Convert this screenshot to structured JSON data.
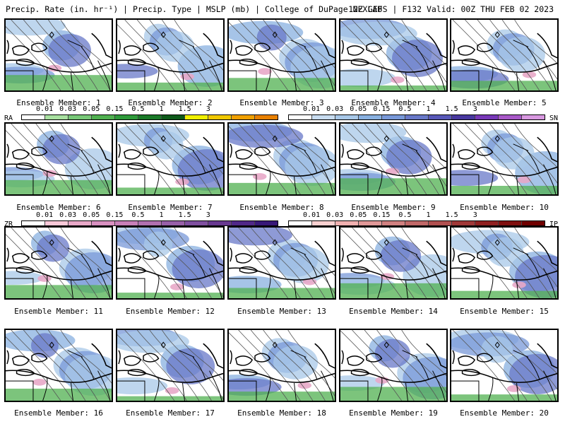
{
  "header": {
    "left": "Precip. Rate (in. hr⁻¹) | Precip. Type | MSLP (mb) | College of DuPage NEXLAB",
    "right": "12Z GEFS | F132 Valid: 00Z THU FEB 02 2023"
  },
  "members": [
    {
      "label": "Ensemble Member: 1"
    },
    {
      "label": "Ensemble Member: 2"
    },
    {
      "label": "Ensemble Member: 3"
    },
    {
      "label": "Ensemble Member: 4"
    },
    {
      "label": "Ensemble Member: 5"
    },
    {
      "label": "Ensemble Member: 6"
    },
    {
      "label": "Ensemble Member: 7"
    },
    {
      "label": "Ensemble Member: 8"
    },
    {
      "label": "Ensemble Member: 9"
    },
    {
      "label": "Ensemble Member: 10"
    },
    {
      "label": "Ensemble Member: 11"
    },
    {
      "label": "Ensemble Member: 12"
    },
    {
      "label": "Ensemble Member: 13"
    },
    {
      "label": "Ensemble Member: 14"
    },
    {
      "label": "Ensemble Member: 15"
    },
    {
      "label": "Ensemble Member: 16"
    },
    {
      "label": "Ensemble Member: 17"
    },
    {
      "label": "Ensemble Member: 18"
    },
    {
      "label": "Ensemble Member: 19"
    },
    {
      "label": "Ensemble Member: 20"
    }
  ],
  "legends": {
    "rain": {
      "code": "RA",
      "ticks": [
        "0.01",
        "0.03",
        "0.05",
        "0.15",
        "0.5",
        "1",
        "1.5",
        "3"
      ],
      "colors": [
        "#ffffff",
        "#a8e0a0",
        "#78c878",
        "#50b050",
        "#2e9a3a",
        "#1a7a28",
        "#0e5a1a",
        "#f0f000",
        "#f0c800",
        "#f0a000",
        "#e88000"
      ]
    },
    "snow": {
      "code": "SN",
      "ticks": [
        "0.01",
        "0.03",
        "0.05",
        "0.15",
        "0.5",
        "1",
        "1.5",
        "3"
      ],
      "colors": [
        "#ffffff",
        "#c8dcf0",
        "#a8c8e8",
        "#88b0e0",
        "#7898d8",
        "#6878c8",
        "#5858b8",
        "#4838a0",
        "#7838b8",
        "#a858c8",
        "#d898e0"
      ]
    },
    "freezing": {
      "code": "ZR",
      "ticks": [
        "0.01",
        "0.03",
        "0.05",
        "0.15",
        "0.5",
        "1",
        "1.5",
        "3"
      ],
      "colors": [
        "#ffffff",
        "#f8c8d8",
        "#e8a8c8",
        "#d890c0",
        "#c880b8",
        "#b070b0",
        "#9860a8",
        "#8050a0",
        "#683890",
        "#502888",
        "#381878"
      ]
    },
    "sleet": {
      "code": "IP",
      "ticks": [
        "0.01",
        "0.03",
        "0.05",
        "0.15",
        "0.5",
        "1",
        "1.5",
        "3"
      ],
      "colors": [
        "#ffffff",
        "#f8d0d0",
        "#f0b0b0",
        "#e09898",
        "#d08080",
        "#c06868",
        "#b05050",
        "#a03838",
        "#902020",
        "#801010",
        "#700000"
      ]
    }
  }
}
